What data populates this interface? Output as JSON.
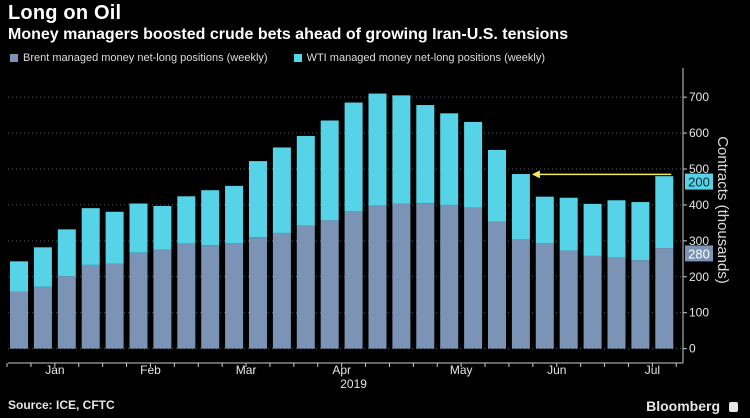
{
  "header": {
    "title": "Long on Oil",
    "subtitle": "Money managers boosted crude bets ahead of growing Iran-U.S. tensions"
  },
  "footer": {
    "source": "Source: ICE, CFTC",
    "brand": "Bloomberg"
  },
  "colors": {
    "brent": "#7b93b5",
    "wti": "#56d3e6",
    "arrow": "#f2e85c",
    "axis": "#cccccc"
  },
  "chart_data": {
    "type": "bar",
    "stacked": true,
    "x_tick_labels": [
      "Jan",
      "Feb",
      "Mar",
      "Apr",
      "May",
      "Jun",
      "Jul"
    ],
    "x_tick_bar_index": [
      1,
      5,
      9,
      13,
      18,
      22,
      26
    ],
    "x_year_label": "2019",
    "ylabel": "Contracts (thousands)",
    "ylim": [
      -40,
      770
    ],
    "yticks": [
      0,
      100,
      200,
      300,
      400,
      500,
      600,
      700
    ],
    "y_axis_side": "right",
    "legend_position": "top-left",
    "grid": true,
    "series": [
      {
        "name": "Brent managed money net-long positions (weekly)",
        "values": [
          158,
          172,
          202,
          233,
          237,
          267,
          275,
          292,
          288,
          293,
          310,
          322,
          342,
          357,
          382,
          398,
          403,
          405,
          400,
          393,
          353,
          304,
          293,
          273,
          258,
          253,
          246,
          280
        ]
      },
      {
        "name": "WTI managed money net-long positions (weekly)",
        "values": [
          85,
          110,
          130,
          158,
          144,
          137,
          122,
          132,
          153,
          160,
          212,
          238,
          250,
          278,
          303,
          312,
          302,
          273,
          255,
          238,
          200,
          182,
          130,
          147,
          145,
          160,
          162,
          200
        ]
      }
    ],
    "annotations": [
      {
        "type": "value-label",
        "text": "200",
        "series": "WTI managed money net-long positions (weekly)",
        "value": 200
      },
      {
        "type": "value-label",
        "text": "280",
        "series": "Brent managed money net-long positions (weekly)",
        "value": 280
      },
      {
        "type": "arrow",
        "from_bar": 27,
        "to_bar": 21,
        "y": 485
      }
    ]
  }
}
